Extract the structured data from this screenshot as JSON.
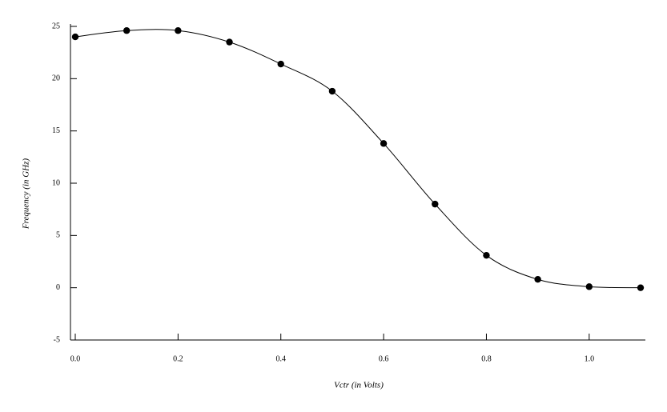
{
  "chart_data": {
    "type": "line",
    "x_label": "Vctr (in Volts)",
    "y_label": "Frequency (in GHz)",
    "x": [
      0,
      0.1,
      0.2,
      0.3,
      0.4,
      0.5,
      0.6,
      0.7,
      0.8,
      0.9,
      1.0,
      1.1
    ],
    "series": [
      {
        "color": "#000000",
        "values": [
          24.0,
          24.6,
          24.6,
          23.5,
          21.4,
          18.8,
          13.8,
          8.0,
          3.1,
          0.8,
          0.1,
          0.0
        ]
      }
    ],
    "xlim": [
      0,
      1.1
    ],
    "ylim": [
      -5,
      25
    ],
    "xticks": [
      {
        "value": 0,
        "label": "0.0"
      },
      {
        "value": 0.2,
        "label": "0.2"
      },
      {
        "value": 0.4,
        "label": "0.4"
      },
      {
        "value": 0.6,
        "label": "0.6"
      },
      {
        "value": 0.8,
        "label": "0.8"
      },
      {
        "value": 1.0,
        "label": "1.0"
      }
    ],
    "yticks": [
      -5,
      0,
      5,
      10,
      15,
      20,
      25
    ],
    "markers": true,
    "smooth": true
  }
}
